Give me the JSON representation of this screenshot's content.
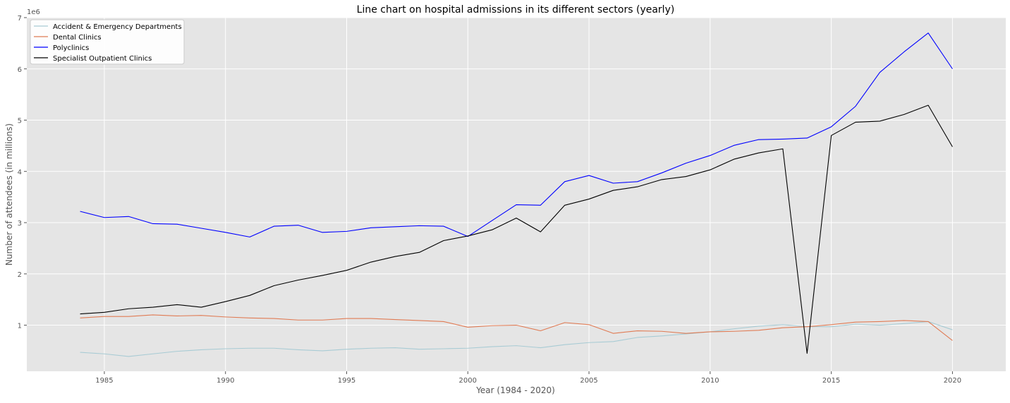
{
  "chart_data": {
    "type": "line",
    "title": "Line chart on hospital admissions in its different sectors (yearly)",
    "xlabel": "Year (1984 - 2020)",
    "ylabel": "Number of attendees (in millions)",
    "y_offset_label": "1e6",
    "xlim": [
      1981.8,
      2022.2
    ],
    "ylim": [
      0.1,
      7.0
    ],
    "x_ticks": [
      1985,
      1990,
      1995,
      2000,
      2005,
      2010,
      2015,
      2020
    ],
    "y_ticks": [
      1,
      2,
      3,
      4,
      5,
      6,
      7
    ],
    "x_tick_labels": [
      "1985",
      "1990",
      "1995",
      "2000",
      "2005",
      "2010",
      "2015",
      "2020"
    ],
    "y_tick_labels": [
      "1",
      "2",
      "3",
      "4",
      "5",
      "6",
      "7"
    ],
    "grid": true,
    "legend_position": "top-left",
    "x": [
      1984,
      1985,
      1986,
      1987,
      1988,
      1989,
      1990,
      1991,
      1992,
      1993,
      1994,
      1995,
      1996,
      1997,
      1998,
      1999,
      2000,
      2001,
      2002,
      2003,
      2004,
      2005,
      2006,
      2007,
      2008,
      2009,
      2010,
      2011,
      2012,
      2013,
      2014,
      2015,
      2016,
      2017,
      2018,
      2019,
      2020
    ],
    "series": [
      {
        "name": "Accident & Emergency Departments",
        "color": "#a8cbd4",
        "values": [
          0.47,
          0.44,
          0.39,
          0.44,
          0.49,
          0.52,
          0.54,
          0.55,
          0.55,
          0.52,
          0.5,
          0.53,
          0.55,
          0.56,
          0.53,
          0.54,
          0.55,
          0.58,
          0.6,
          0.56,
          0.62,
          0.66,
          0.68,
          0.76,
          0.79,
          0.83,
          0.87,
          0.93,
          0.98,
          1.01,
          0.97,
          0.97,
          1.02,
          1.0,
          1.03,
          1.07,
          0.91
        ]
      },
      {
        "name": "Dental Clinics",
        "color": "#e07b54",
        "values": [
          1.14,
          1.17,
          1.17,
          1.2,
          1.18,
          1.19,
          1.16,
          1.14,
          1.13,
          1.1,
          1.1,
          1.13,
          1.13,
          1.11,
          1.09,
          1.07,
          0.96,
          0.99,
          1.0,
          0.89,
          1.05,
          1.01,
          0.84,
          0.89,
          0.88,
          0.84,
          0.87,
          0.88,
          0.9,
          0.95,
          0.97,
          1.01,
          1.06,
          1.07,
          1.09,
          1.07,
          0.7
        ]
      },
      {
        "name": "Polyclinics",
        "color": "#0000ff",
        "values": [
          3.22,
          3.1,
          3.12,
          2.98,
          2.97,
          2.89,
          2.81,
          2.72,
          2.93,
          2.95,
          2.81,
          2.83,
          2.9,
          2.92,
          2.94,
          2.93,
          2.73,
          3.04,
          3.35,
          3.34,
          3.8,
          3.92,
          3.77,
          3.8,
          3.97,
          4.16,
          4.31,
          4.51,
          4.62,
          4.63,
          4.65,
          4.87,
          5.27,
          5.93,
          6.33,
          6.7,
          6.0
        ]
      },
      {
        "name": "Specialist Outpatient Clinics",
        "color": "#000000",
        "values": [
          1.22,
          1.25,
          1.32,
          1.35,
          1.4,
          1.35,
          1.46,
          1.58,
          1.77,
          1.88,
          1.97,
          2.07,
          2.23,
          2.34,
          2.42,
          2.65,
          2.74,
          2.86,
          3.09,
          2.82,
          3.34,
          3.46,
          3.63,
          3.7,
          3.84,
          3.9,
          4.03,
          4.24,
          4.36,
          4.44,
          0.45,
          4.7,
          4.96,
          4.98,
          5.11,
          5.29,
          4.48
        ]
      }
    ]
  }
}
